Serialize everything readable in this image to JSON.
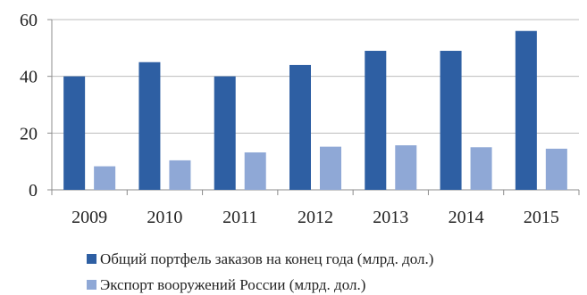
{
  "chart_data": {
    "type": "bar",
    "categories": [
      "2009",
      "2010",
      "2011",
      "2012",
      "2013",
      "2014",
      "2015"
    ],
    "series": [
      {
        "name": "Общий портфель заказов на конец года (млрд. дол.)",
        "values": [
          40,
          45,
          40,
          44,
          49,
          49,
          56
        ],
        "color": "#2e5fa3"
      },
      {
        "name": "Экспорт вооружений России (млрд. дол.)",
        "values": [
          8.3,
          10.4,
          13.2,
          15.2,
          15.7,
          15.0,
          14.5
        ],
        "color": "#8fa8d6"
      }
    ],
    "y_ticks": [
      "0",
      "20",
      "40",
      "60"
    ],
    "ylim": [
      0,
      60
    ],
    "grid": true,
    "legend_position": "bottom",
    "xlabel": "",
    "ylabel": ""
  }
}
